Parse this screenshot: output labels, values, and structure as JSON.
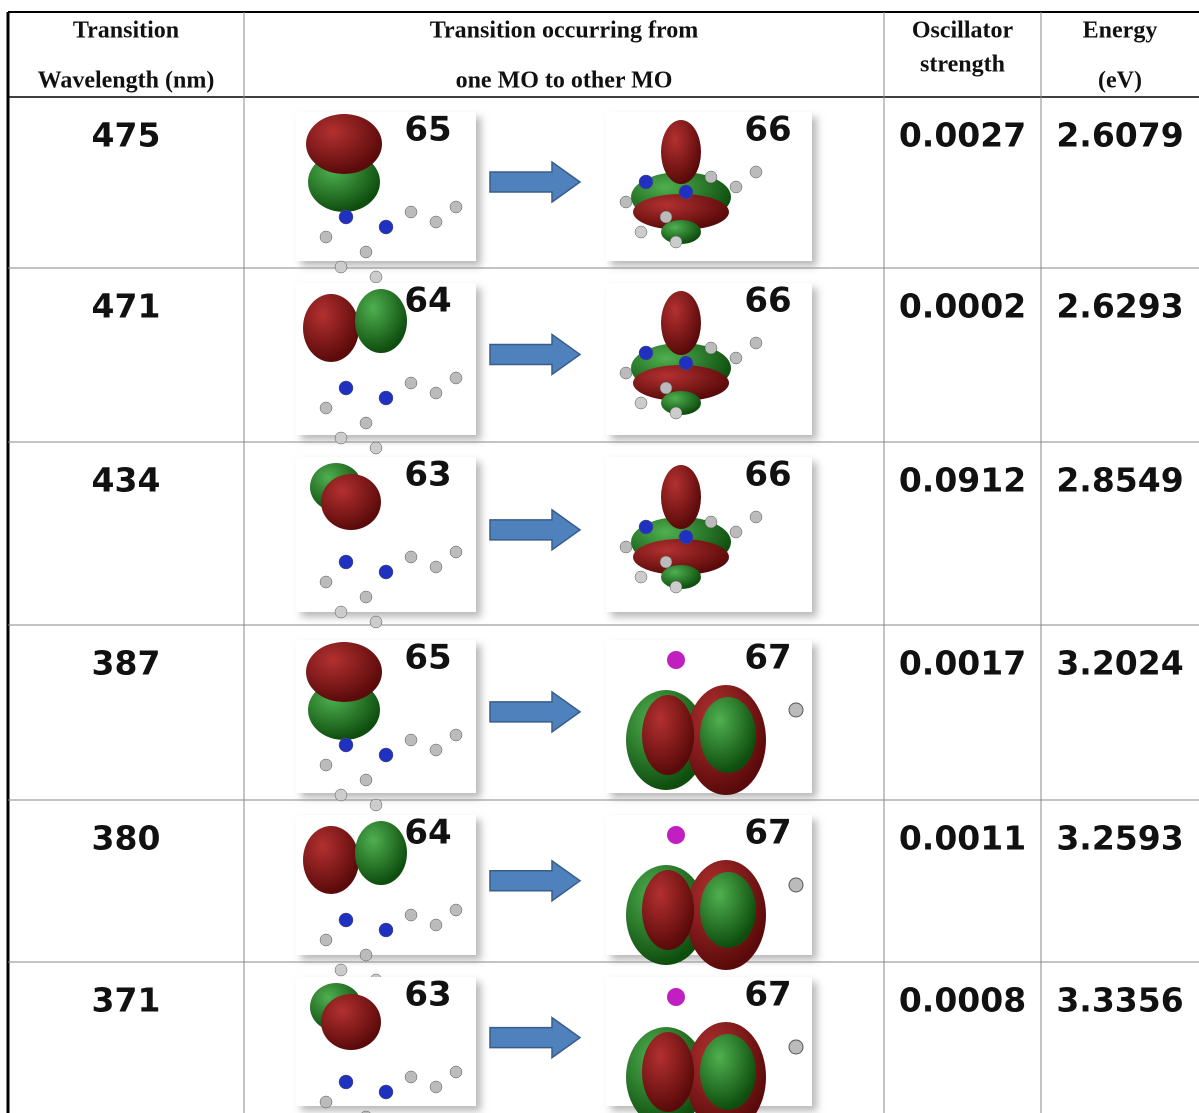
{
  "table": {
    "header": [
      [
        "Transition",
        "Wavelength  (nm)"
      ],
      [
        "Transition occurring from",
        "one MO to other MO"
      ],
      [
        "Oscillator",
        "strength"
      ],
      [
        "Energy",
        "(eV)"
      ]
    ],
    "rows": [
      [
        "475",
        "65",
        "66",
        "0.0027",
        "2.6079"
      ],
      [
        "471",
        "64",
        "66",
        "0.0002",
        "2.6293"
      ],
      [
        "434",
        "63",
        "66",
        "0.0912",
        "2.8549"
      ],
      [
        "387",
        "65",
        "67",
        "0.0017",
        "3.2024"
      ],
      [
        "380",
        "64",
        "67",
        "0.0011",
        "3.2593"
      ],
      [
        "371",
        "63",
        "67",
        "0.0008",
        "3.3356"
      ]
    ]
  }
}
